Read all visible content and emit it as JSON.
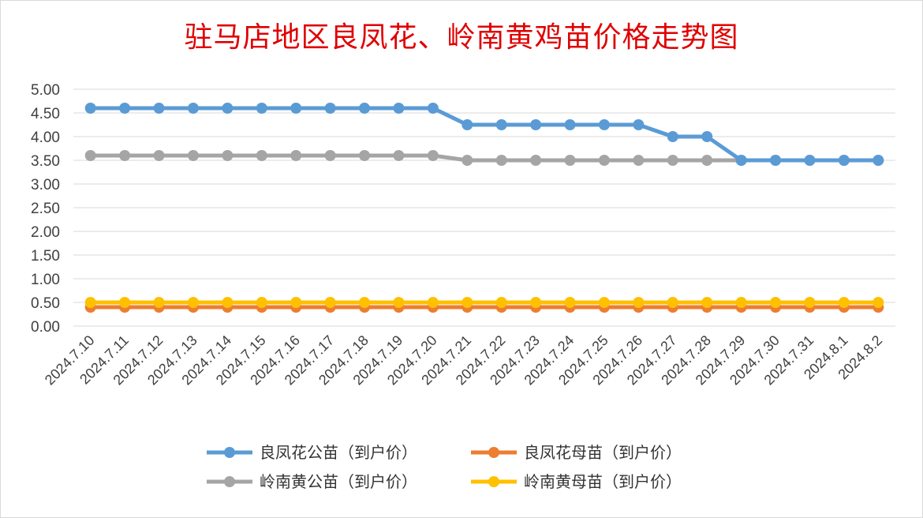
{
  "chart_data": {
    "type": "line",
    "title": "驻马店地区良凤花、岭南黄鸡苗价格走势图",
    "xlabel": "",
    "ylabel": "",
    "ylim": [
      0,
      5
    ],
    "y_ticks": [
      "0.00",
      "0.50",
      "1.00",
      "1.50",
      "2.00",
      "2.50",
      "3.00",
      "3.50",
      "4.00",
      "4.50",
      "5.00"
    ],
    "grid": true,
    "legend_position": "bottom",
    "categories": [
      "2024.7.10",
      "2024.7.11",
      "2024.7.12",
      "2024.7.13",
      "2024.7.14",
      "2024.7.15",
      "2024.7.16",
      "2024.7.17",
      "2024.7.18",
      "2024.7.19",
      "2024.7.20",
      "2024.7.21",
      "2024.7.22",
      "2024.7.23",
      "2024.7.24",
      "2024.7.25",
      "2024.7.26",
      "2024.7.27",
      "2024.7.28",
      "2024.7.29",
      "2024.7.30",
      "2024.7.31",
      "2024.8.1",
      "2024.8.2"
    ],
    "series": [
      {
        "name": "良凤花公苗（到户价）",
        "color": "#5b9bd5",
        "values": [
          4.6,
          4.6,
          4.6,
          4.6,
          4.6,
          4.6,
          4.6,
          4.6,
          4.6,
          4.6,
          4.6,
          4.25,
          4.25,
          4.25,
          4.25,
          4.25,
          4.25,
          4.0,
          4.0,
          3.5,
          3.5,
          3.5,
          3.5,
          3.5
        ]
      },
      {
        "name": "良凤花母苗（到户价）",
        "color": "#ed7d31",
        "values": [
          0.4,
          0.4,
          0.4,
          0.4,
          0.4,
          0.4,
          0.4,
          0.4,
          0.4,
          0.4,
          0.4,
          0.4,
          0.4,
          0.4,
          0.4,
          0.4,
          0.4,
          0.4,
          0.4,
          0.4,
          0.4,
          0.4,
          0.4,
          0.4
        ]
      },
      {
        "name": "岭南黄公苗（到户价）",
        "color": "#a5a5a5",
        "values": [
          3.6,
          3.6,
          3.6,
          3.6,
          3.6,
          3.6,
          3.6,
          3.6,
          3.6,
          3.6,
          3.6,
          3.5,
          3.5,
          3.5,
          3.5,
          3.5,
          3.5,
          3.5,
          3.5,
          3.5,
          3.5,
          3.5,
          3.5,
          3.5
        ]
      },
      {
        "name": "岭南黄母苗（到户价）",
        "color": "#ffc000",
        "values": [
          0.5,
          0.5,
          0.5,
          0.5,
          0.5,
          0.5,
          0.5,
          0.5,
          0.5,
          0.5,
          0.5,
          0.5,
          0.5,
          0.5,
          0.5,
          0.5,
          0.5,
          0.5,
          0.5,
          0.5,
          0.5,
          0.5,
          0.5,
          0.5
        ]
      }
    ]
  }
}
